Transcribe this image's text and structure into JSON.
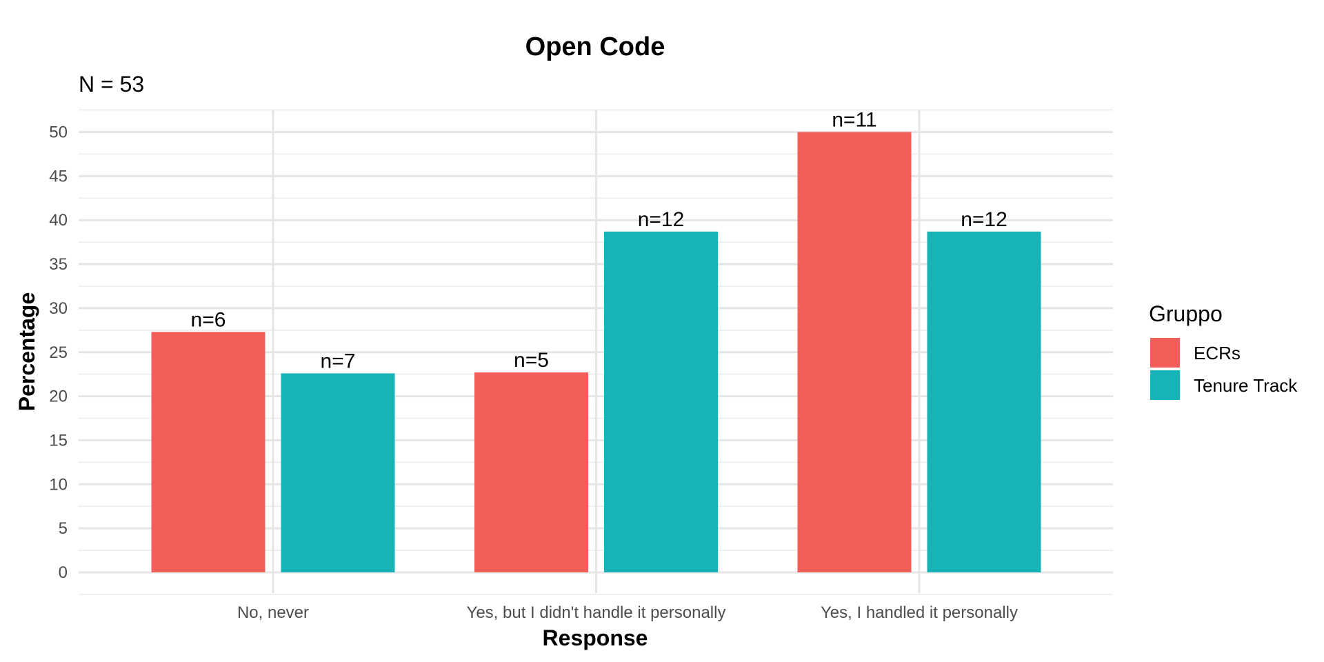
{
  "chart_data": {
    "type": "bar",
    "title": "Open Code",
    "subtitle": "N = 53",
    "xlabel": "Response",
    "ylabel": "Percentage",
    "categories": [
      "No, never",
      "Yes, but I didn't handle it personally",
      "Yes, I handled it personally"
    ],
    "series": [
      {
        "name": "ECRs",
        "color": "#F35E5A",
        "values": [
          27.3,
          22.7,
          50.0
        ],
        "labels": [
          "n=6",
          "n=5",
          "n=11"
        ]
      },
      {
        "name": "Tenure Track",
        "color": "#17B3B7",
        "values": [
          22.6,
          38.7,
          38.7
        ],
        "labels": [
          "n=7",
          "n=12",
          "n=12"
        ]
      }
    ],
    "ylim": [
      0,
      52.5
    ],
    "yticks": [
      0,
      5,
      10,
      15,
      20,
      25,
      30,
      35,
      40,
      45,
      50
    ],
    "legend": {
      "title": "Gruppo",
      "position": "right"
    },
    "grid": true
  }
}
